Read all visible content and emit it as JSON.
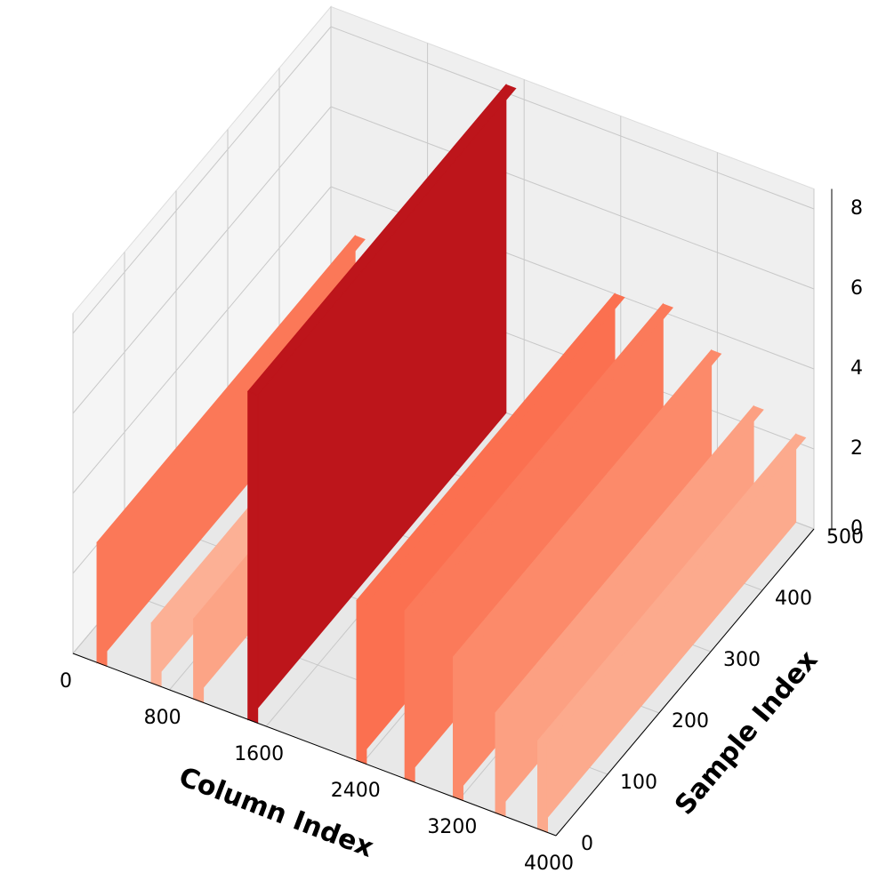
{
  "chart_data": {
    "type": "ridge3d",
    "xlabel": "Column Index",
    "ylabel": "Sample Index",
    "xlim": [
      0,
      4000
    ],
    "xticks": [
      0,
      800,
      1600,
      2400,
      3200,
      4000
    ],
    "ylim": [
      0,
      500
    ],
    "yticks": [
      0,
      100,
      200,
      300,
      400,
      500
    ],
    "zlim": [
      0,
      8.5
    ],
    "zticks": [
      0,
      2,
      4,
      6,
      8
    ],
    "x": [
      200,
      650,
      1000,
      1450,
      2350,
      2750,
      3150,
      3500,
      3850
    ],
    "values": [
      3,
      1.5,
      2,
      8.2,
      4,
      4.2,
      3.5,
      2.5,
      2.2
    ],
    "colors": [
      "#fb7858",
      "#fcb095",
      "#fca486",
      "#bd151b",
      "#fb7050",
      "#fb7a5a",
      "#fc8a6a",
      "#fca082",
      "#fcaa8d"
    ],
    "grid": true
  }
}
